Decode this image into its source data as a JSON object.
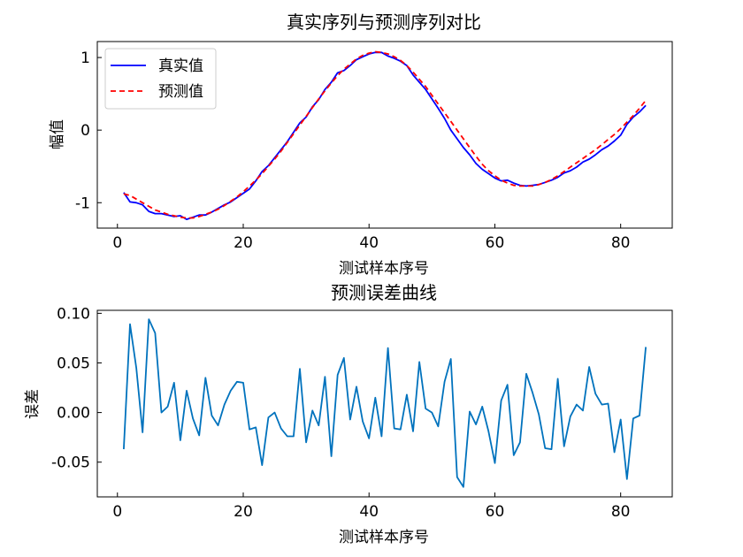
{
  "chart_data": [
    {
      "type": "line",
      "title": "真实序列与预测序列对比",
      "xlabel": "测试样本序号",
      "ylabel": "幅值",
      "xlim": [
        -3.2,
        88.2
      ],
      "ylim": [
        -1.35,
        1.22
      ],
      "xticks": [
        0,
        20,
        40,
        60,
        80
      ],
      "yticks": [
        -1,
        0,
        1
      ],
      "ytick_labels": [
        "-1",
        "0",
        "1"
      ],
      "grid": false,
      "legend": "upper left",
      "series": [
        {
          "name": "真实值",
          "color": "#0000ff",
          "dash": "solid",
          "x": [
            1,
            2,
            3,
            4,
            5,
            6,
            7,
            8,
            9,
            10,
            11,
            12,
            13,
            14,
            15,
            16,
            17,
            18,
            19,
            20,
            21,
            22,
            23,
            24,
            25,
            26,
            27,
            28,
            29,
            30,
            31,
            32,
            33,
            34,
            35,
            36,
            37,
            38,
            39,
            40,
            41,
            42,
            43,
            44,
            45,
            46,
            47,
            48,
            49,
            50,
            51,
            52,
            53,
            54,
            55,
            56,
            57,
            58,
            59,
            60,
            61,
            62,
            63,
            64,
            65,
            66,
            67,
            68,
            69,
            70,
            71,
            72,
            73,
            74,
            75,
            76,
            77,
            78,
            79,
            80,
            81,
            82,
            83,
            84
          ],
          "y": [
            -0.86,
            -0.99,
            -1.0,
            -1.03,
            -1.12,
            -1.15,
            -1.15,
            -1.17,
            -1.19,
            -1.18,
            -1.23,
            -1.2,
            -1.17,
            -1.17,
            -1.13,
            -1.08,
            -1.03,
            -0.99,
            -0.93,
            -0.87,
            -0.81,
            -0.7,
            -0.57,
            -0.49,
            -0.38,
            -0.27,
            -0.16,
            -0.03,
            0.1,
            0.18,
            0.32,
            0.42,
            0.56,
            0.66,
            0.79,
            0.82,
            0.89,
            0.97,
            1.01,
            1.05,
            1.07,
            1.07,
            1.02,
            0.99,
            0.95,
            0.89,
            0.76,
            0.66,
            0.56,
            0.43,
            0.3,
            0.16,
            0.0,
            -0.12,
            -0.24,
            -0.34,
            -0.46,
            -0.54,
            -0.6,
            -0.66,
            -0.7,
            -0.69,
            -0.73,
            -0.76,
            -0.77,
            -0.76,
            -0.75,
            -0.72,
            -0.69,
            -0.65,
            -0.59,
            -0.56,
            -0.51,
            -0.44,
            -0.4,
            -0.34,
            -0.27,
            -0.22,
            -0.15,
            -0.07,
            0.08,
            0.18,
            0.25,
            0.34
          ]
        },
        {
          "name": "预测值",
          "color": "#ff0000",
          "dash": "dashed",
          "x": [
            1,
            2,
            3,
            4,
            5,
            6,
            7,
            8,
            9,
            10,
            11,
            12,
            13,
            14,
            15,
            16,
            17,
            18,
            19,
            20,
            21,
            22,
            23,
            24,
            25,
            26,
            27,
            28,
            29,
            30,
            31,
            32,
            33,
            34,
            35,
            36,
            37,
            38,
            39,
            40,
            41,
            42,
            43,
            44,
            45,
            46,
            47,
            48,
            49,
            50,
            51,
            52,
            53,
            54,
            55,
            56,
            57,
            58,
            59,
            60,
            61,
            62,
            63,
            64,
            65,
            66,
            67,
            68,
            69,
            70,
            71,
            72,
            73,
            74,
            75,
            76,
            77,
            78,
            79,
            80,
            81,
            82,
            83,
            84
          ],
          "y": [
            -0.88,
            -0.9,
            -0.95,
            -1.0,
            -1.05,
            -1.1,
            -1.13,
            -1.16,
            -1.18,
            -1.2,
            -1.21,
            -1.21,
            -1.19,
            -1.16,
            -1.13,
            -1.09,
            -1.04,
            -0.98,
            -0.92,
            -0.85,
            -0.77,
            -0.69,
            -0.6,
            -0.5,
            -0.4,
            -0.29,
            -0.17,
            -0.05,
            0.07,
            0.19,
            0.31,
            0.43,
            0.54,
            0.65,
            0.75,
            0.84,
            0.91,
            0.98,
            1.03,
            1.06,
            1.08,
            1.07,
            1.05,
            1.01,
            0.96,
            0.89,
            0.8,
            0.7,
            0.6,
            0.48,
            0.36,
            0.24,
            0.12,
            0.0,
            -0.12,
            -0.24,
            -0.36,
            -0.47,
            -0.56,
            -0.63,
            -0.69,
            -0.73,
            -0.76,
            -0.77,
            -0.77,
            -0.77,
            -0.75,
            -0.72,
            -0.68,
            -0.63,
            -0.57,
            -0.51,
            -0.45,
            -0.39,
            -0.33,
            -0.27,
            -0.2,
            -0.13,
            -0.06,
            0.02,
            0.11,
            0.2,
            0.3,
            0.41
          ]
        }
      ]
    },
    {
      "type": "line",
      "title": "预测误差曲线",
      "xlabel": "测试样本序号",
      "ylabel": "误差",
      "xlim": [
        -3.2,
        88.2
      ],
      "ylim": [
        -0.085,
        0.103
      ],
      "xticks": [
        0,
        20,
        40,
        60,
        80
      ],
      "yticks": [
        -0.05,
        0.0,
        0.05,
        0.1
      ],
      "ytick_labels": [
        "-0.05",
        "0.00",
        "0.05",
        "0.10"
      ],
      "grid": false,
      "series": [
        {
          "color": "#0072bd",
          "dash": "solid",
          "x": [
            1,
            2,
            3,
            4,
            5,
            6,
            7,
            8,
            9,
            10,
            11,
            12,
            13,
            14,
            15,
            16,
            17,
            18,
            19,
            20,
            21,
            22,
            23,
            24,
            25,
            26,
            27,
            28,
            29,
            30,
            31,
            32,
            33,
            34,
            35,
            36,
            37,
            38,
            39,
            40,
            41,
            42,
            43,
            44,
            45,
            46,
            47,
            48,
            49,
            50,
            51,
            52,
            53,
            54,
            55,
            56,
            57,
            58,
            59,
            60,
            61,
            62,
            63,
            64,
            65,
            66,
            67,
            68,
            69,
            70,
            71,
            72,
            73,
            74,
            75,
            76,
            77,
            78,
            79,
            80,
            81,
            82,
            83,
            84
          ],
          "y": [
            -0.037,
            0.089,
            0.045,
            -0.02,
            0.094,
            0.08,
            0.0,
            0.006,
            0.03,
            -0.028,
            0.022,
            -0.006,
            -0.023,
            0.035,
            -0.003,
            -0.013,
            0.008,
            0.022,
            0.031,
            0.03,
            -0.017,
            -0.015,
            -0.053,
            -0.005,
            0.0,
            -0.016,
            -0.024,
            -0.024,
            0.044,
            -0.03,
            0.002,
            -0.013,
            0.036,
            -0.044,
            0.038,
            0.055,
            -0.007,
            0.026,
            -0.009,
            -0.026,
            0.015,
            -0.024,
            0.065,
            -0.016,
            -0.017,
            0.018,
            -0.019,
            0.051,
            0.004,
            0.0,
            -0.014,
            0.031,
            0.054,
            -0.065,
            -0.075,
            0.001,
            -0.012,
            0.006,
            -0.019,
            -0.051,
            0.012,
            0.028,
            -0.043,
            -0.03,
            0.039,
            0.02,
            -0.002,
            -0.036,
            -0.037,
            0.034,
            -0.034,
            -0.004,
            0.008,
            0.002,
            0.046,
            0.019,
            0.008,
            0.009,
            -0.04,
            -0.007,
            -0.067,
            -0.006,
            -0.003,
            0.066
          ]
        }
      ]
    }
  ]
}
